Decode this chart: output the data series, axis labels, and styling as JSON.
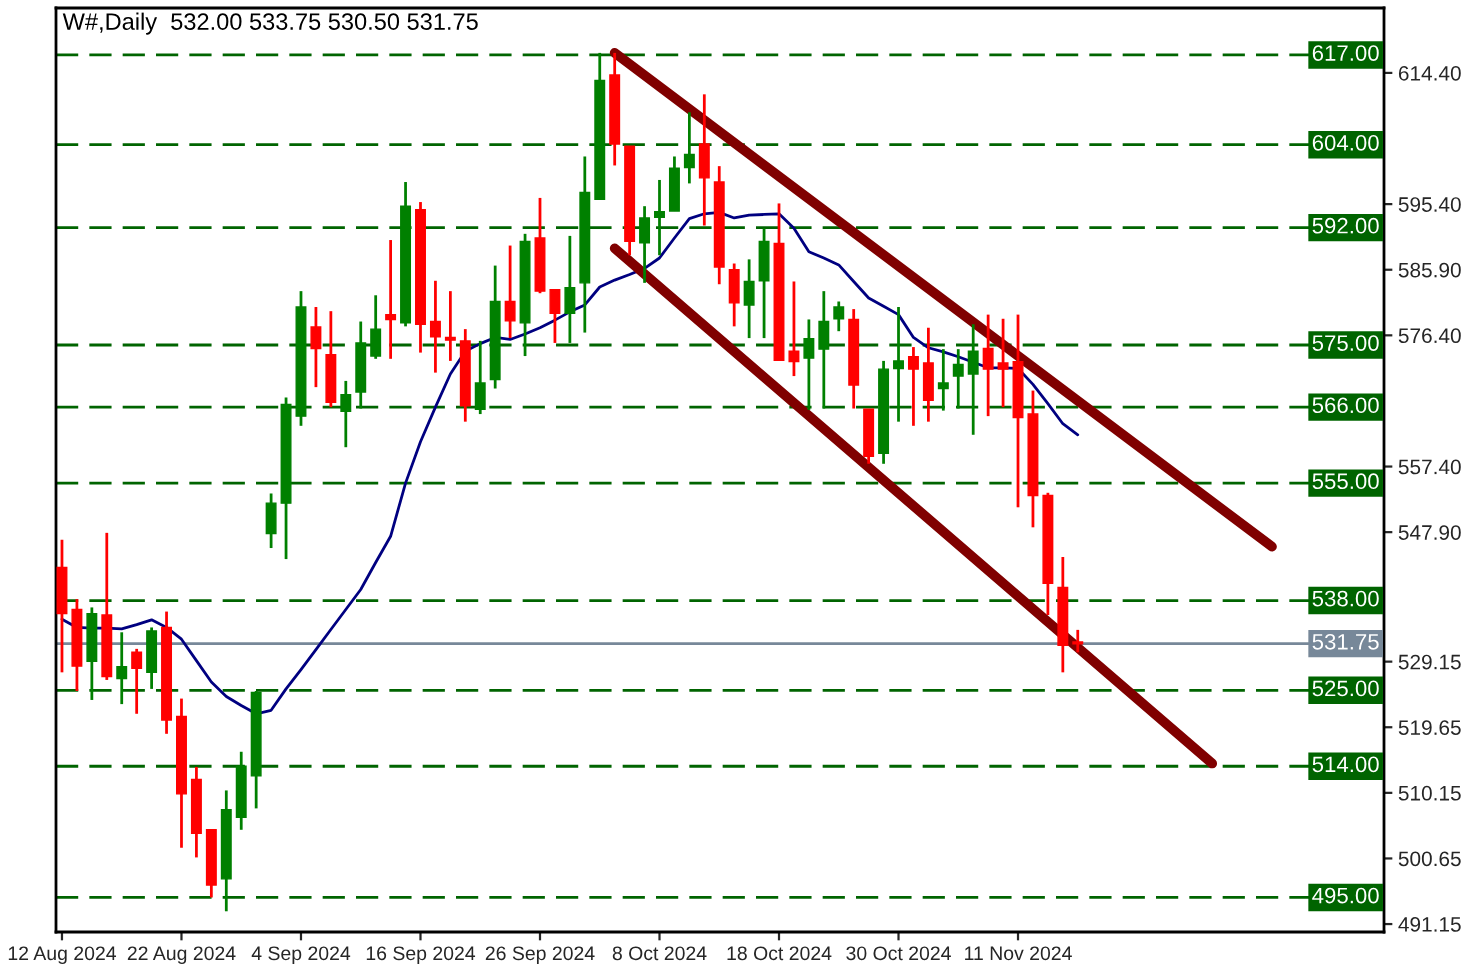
{
  "chart_data": {
    "type": "candlestick",
    "title": "W#,Daily  532.00 533.75 530.50 531.75",
    "categories": [
      "12 Aug 2024",
      null,
      null,
      null,
      null,
      null,
      null,
      null,
      "22 Aug 2024",
      null,
      null,
      null,
      null,
      null,
      null,
      null,
      "4 Sep 2024",
      null,
      null,
      null,
      null,
      null,
      null,
      null,
      "16 Sep 2024",
      null,
      null,
      null,
      null,
      null,
      null,
      null,
      "26 Sep 2024",
      null,
      null,
      null,
      null,
      null,
      null,
      null,
      "8 Oct 2024",
      null,
      null,
      null,
      null,
      null,
      null,
      null,
      "18 Oct 2024",
      null,
      null,
      null,
      null,
      null,
      null,
      null,
      "30 Oct 2024",
      null,
      null,
      null,
      null,
      null,
      null,
      null,
      "11 Nov 2024",
      null,
      null,
      null,
      null,
      null,
      null,
      null,
      null,
      null,
      null,
      null,
      null,
      null,
      null,
      null,
      null,
      null
    ],
    "ohlc": [
      [
        542.8,
        546.8,
        527.6,
        536.1
      ],
      [
        536.7,
        538.2,
        524.9,
        528.5
      ],
      [
        529.2,
        537.0,
        523.6,
        536.1
      ],
      [
        535.9,
        547.8,
        526.5,
        527.0
      ],
      [
        526.7,
        533.4,
        523.0,
        528.4
      ],
      [
        530.5,
        531.0,
        521.6,
        528.2
      ],
      [
        527.6,
        534.1,
        525.2,
        533.6
      ],
      [
        534.1,
        536.4,
        518.7,
        520.7
      ],
      [
        521.2,
        523.8,
        502.2,
        510.0
      ],
      [
        512.1,
        513.9,
        500.8,
        504.3
      ],
      [
        504.8,
        504.8,
        495.0,
        496.8
      ],
      [
        497.7,
        510.5,
        493.0,
        507.7
      ],
      [
        506.6,
        516.1,
        504.8,
        514.0
      ],
      [
        512.6,
        524.9,
        507.9,
        524.7
      ],
      [
        547.7,
        553.5,
        545.6,
        552.1
      ],
      [
        552.1,
        567.4,
        544.0,
        566.4
      ],
      [
        564.7,
        582.8,
        563.3,
        580.5
      ],
      [
        577.6,
        580.5,
        568.9,
        574.5
      ],
      [
        573.6,
        579.9,
        566.0,
        566.7
      ],
      [
        565.4,
        569.8,
        560.2,
        567.8
      ],
      [
        568.2,
        578.4,
        565.8,
        575.3
      ],
      [
        573.4,
        582.2,
        573.0,
        577.3
      ],
      [
        579.4,
        590.2,
        573.0,
        578.7
      ],
      [
        578.2,
        598.6,
        577.7,
        595.1
      ],
      [
        594.6,
        595.7,
        573.9,
        578.0
      ],
      [
        578.4,
        584.3,
        571.0,
        576.2
      ],
      [
        576.1,
        582.8,
        572.7,
        575.7
      ],
      [
        575.6,
        577.3,
        563.9,
        566.2
      ],
      [
        565.7,
        575.6,
        565.0,
        569.5
      ],
      [
        570.0,
        586.5,
        568.7,
        581.3
      ],
      [
        581.3,
        589.4,
        576.0,
        578.5
      ],
      [
        578.2,
        591.1,
        573.4,
        590.0
      ],
      [
        590.5,
        596.3,
        582.5,
        582.8
      ],
      [
        583.0,
        583.0,
        575.3,
        579.6
      ],
      [
        579.6,
        590.8,
        575.3,
        583.3
      ],
      [
        584.0,
        602.3,
        576.8,
        597.1
      ],
      [
        596.1,
        617.3,
        596.1,
        613.3
      ],
      [
        614.1,
        617.3,
        601.0,
        604.1
      ],
      [
        603.8,
        603.8,
        588.0,
        590.0
      ],
      [
        589.8,
        595.1,
        584.0,
        593.4
      ],
      [
        593.5,
        598.9,
        588.0,
        594.3
      ],
      [
        594.4,
        602.3,
        594.4,
        600.6
      ],
      [
        600.7,
        608.7,
        598.4,
        602.6
      ],
      [
        604.1,
        611.3,
        592.3,
        599.2
      ],
      [
        598.6,
        600.9,
        583.8,
        586.3
      ],
      [
        585.9,
        586.8,
        577.7,
        581.1
      ],
      [
        580.8,
        587.4,
        576.0,
        584.2
      ],
      [
        584.3,
        591.9,
        576.0,
        590.0
      ],
      [
        589.7,
        595.5,
        572.8,
        572.8
      ],
      [
        574.1,
        584.2,
        570.5,
        572.6
      ],
      [
        573.1,
        578.7,
        565.6,
        575.9
      ],
      [
        574.4,
        582.8,
        565.8,
        578.4
      ],
      [
        578.8,
        581.3,
        577.0,
        580.5
      ],
      [
        578.7,
        580.2,
        565.8,
        569.2
      ],
      [
        565.7,
        565.7,
        557.8,
        558.9
      ],
      [
        559.3,
        572.7,
        557.8,
        571.5
      ],
      [
        571.6,
        580.5,
        563.9,
        572.7
      ],
      [
        573.3,
        574.7,
        563.3,
        571.5
      ],
      [
        572.4,
        577.5,
        563.9,
        567.0
      ],
      [
        568.7,
        574.4,
        565.5,
        569.5
      ],
      [
        570.5,
        574.4,
        565.8,
        572.2
      ],
      [
        570.8,
        578.0,
        562.0,
        574.1
      ],
      [
        574.5,
        579.4,
        564.7,
        571.5
      ],
      [
        572.4,
        578.8,
        566.0,
        571.5
      ],
      [
        572.6,
        579.4,
        551.5,
        564.5
      ],
      [
        565.0,
        568.4,
        548.6,
        553.2
      ],
      [
        553.2,
        553.6,
        535.9,
        540.5
      ],
      [
        539.9,
        544.3,
        527.6,
        531.5
      ],
      [
        532.0,
        533.75,
        530.5,
        531.75
      ],
      null,
      null,
      null,
      null,
      null,
      null,
      null,
      null,
      null,
      null,
      null,
      null,
      null
    ],
    "colors": [
      "#ff0000",
      "#ff0000",
      "#008000",
      "#ff0000",
      "#008000",
      "#ff0000",
      "#008000",
      "#ff0000",
      "#ff0000",
      "#ff0000",
      "#ff0000",
      "#008000",
      "#008000",
      "#008000",
      "#008000",
      "#008000",
      "#008000",
      "#ff0000",
      "#ff0000",
      "#008000",
      "#008000",
      "#008000",
      "#ff0000",
      "#008000",
      "#ff0000",
      "#ff0000",
      "#ff0000",
      "#ff0000",
      "#008000",
      "#008000",
      "#ff0000",
      "#008000",
      "#ff0000",
      "#ff0000",
      "#008000",
      "#008000",
      "#008000",
      "#ff0000",
      "#ff0000",
      "#008000",
      "#008000",
      "#008000",
      "#008000",
      "#ff0000",
      "#ff0000",
      "#ff0000",
      "#008000",
      "#008000",
      "#ff0000",
      "#ff0000",
      "#008000",
      "#008000",
      "#008000",
      "#ff0000",
      "#ff0000",
      "#008000",
      "#008000",
      "#ff0000",
      "#ff0000",
      "#008000",
      "#008000",
      "#008000",
      "#ff0000",
      "#ff0000",
      "#ff0000",
      "#ff0000",
      "#ff0000",
      "#ff0000",
      "#ff0000",
      null,
      null,
      null,
      null,
      null,
      null,
      null,
      null,
      null,
      null,
      null,
      null,
      null
    ],
    "series": [
      {
        "type": "line",
        "color": "#000080",
        "values": [
          535.3,
          534.1,
          534.0,
          534.0,
          533.9,
          534.5,
          535.2,
          534.1,
          532.4,
          529.3,
          526.2,
          524.1,
          522.8,
          521.6,
          522.1,
          525.2,
          528.0,
          530.9,
          533.8,
          536.7,
          539.6,
          543.5,
          547.3,
          555.0,
          561.0,
          566.0,
          570.8,
          574.1,
          575.2,
          576.1,
          575.8,
          576.6,
          577.5,
          578.6,
          579.8,
          580.8,
          583.4,
          584.4,
          585.2,
          586.1,
          587.6,
          590.5,
          593.3,
          594.0,
          594.2,
          593.4,
          593.8,
          593.9,
          594.0,
          591.9,
          588.5,
          587.6,
          586.6,
          584.2,
          581.8,
          580.6,
          579.4,
          576.1,
          574.6,
          574.0,
          573.3,
          572.5,
          571.7,
          571.7,
          571.6,
          569.3,
          566.5,
          563.6,
          562.0,
          null,
          null,
          null,
          null,
          null,
          null,
          null,
          null,
          null,
          null,
          null,
          null,
          null
        ]
      },
      {
        "type": "line",
        "color": "#800000",
        "values": [
          null,
          null,
          null,
          null,
          null,
          null,
          null,
          null,
          null,
          null,
          null,
          null,
          null,
          null,
          null,
          null,
          null,
          null,
          null,
          null,
          null,
          null,
          null,
          null,
          null,
          null,
          null,
          null,
          null,
          null,
          null,
          null,
          null,
          null,
          null,
          null,
          null,
          617.3,
          null,
          null,
          null,
          null,
          null,
          null,
          null,
          null,
          null,
          null,
          null,
          null,
          null,
          null,
          null,
          null,
          null,
          null,
          null,
          null,
          null,
          null,
          null,
          null,
          null,
          null,
          null,
          null,
          null,
          null,
          null,
          null,
          null,
          null,
          null,
          null,
          null,
          null,
          null,
          null,
          null,
          null,
          null,
          545.8
        ]
      },
      {
        "type": "line",
        "color": "#800000",
        "values": [
          null,
          null,
          null,
          null,
          null,
          null,
          null,
          null,
          null,
          null,
          null,
          null,
          null,
          null,
          null,
          null,
          null,
          null,
          null,
          null,
          null,
          null,
          null,
          null,
          null,
          null,
          null,
          null,
          null,
          null,
          null,
          null,
          null,
          null,
          null,
          null,
          null,
          589.0,
          null,
          null,
          null,
          null,
          null,
          null,
          null,
          null,
          null,
          null,
          null,
          null,
          null,
          null,
          null,
          null,
          null,
          null,
          null,
          null,
          null,
          null,
          null,
          null,
          null,
          null,
          null,
          null,
          null,
          null,
          null,
          null,
          null,
          null,
          null,
          null,
          null,
          null,
          null,
          514.4,
          null,
          null,
          null,
          null
        ]
      }
    ],
    "ylim": [
      490.0,
      623.8
    ],
    "yticks": [
      491.15,
      500.65,
      510.15,
      519.65,
      529.15,
      {
        "value": 547.9,
        "label": "547.90"
      },
      {
        "value": 557.4,
        "label": "557.40"
      },
      {
        "value": 576.4,
        "label": "576.40"
      },
      {
        "value": 585.9,
        "label": "585.90"
      },
      {
        "value": 595.4,
        "label": "595.40"
      },
      {
        "value": 614.4,
        "label": "614.40"
      }
    ],
    "ref_lines": [
      {
        "axis": "y",
        "value": 617,
        "label": "617.00",
        "color": "#006400",
        "line_style": "dashed"
      },
      {
        "axis": "y",
        "value": 604,
        "label": "604.00",
        "color": "#006400",
        "line_style": "dashed"
      },
      {
        "axis": "y",
        "value": 592,
        "label": "592.00",
        "color": "#006400",
        "line_style": "dashed"
      },
      {
        "axis": "y",
        "value": 575,
        "label": "575.00",
        "color": "#006400",
        "line_style": "dashed"
      },
      {
        "axis": "y",
        "value": 566,
        "label": "566.00",
        "color": "#006400",
        "line_style": "dashed"
      },
      {
        "axis": "y",
        "value": 555,
        "label": "555.00",
        "color": "#006400",
        "line_style": "dashed"
      },
      {
        "axis": "y",
        "value": 538,
        "label": "538.00",
        "color": "#006400",
        "line_style": "dashed"
      },
      {
        "axis": "y",
        "value": 531.75,
        "label": "531.75",
        "color": "#778899",
        "line_style": "solid"
      },
      {
        "axis": "y",
        "value": 525,
        "label": "525.00",
        "color": "#006400",
        "line_style": "dashed"
      },
      {
        "axis": "y",
        "value": 514,
        "label": "514.00",
        "color": "#006400",
        "line_style": "dashed"
      },
      {
        "axis": "y",
        "value": 495,
        "label": "495.00",
        "color": "#006400",
        "line_style": "dashed"
      }
    ],
    "grid": false,
    "legend": false
  }
}
